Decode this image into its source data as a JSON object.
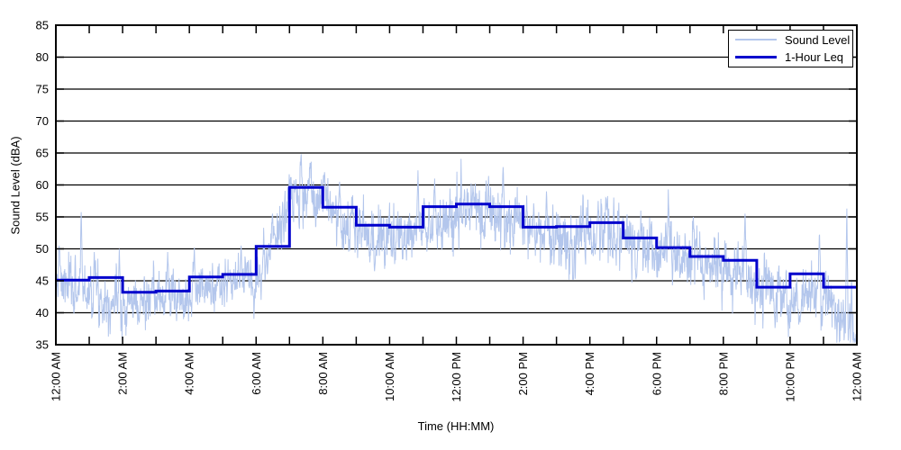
{
  "figure": {
    "xlabel": "Time (HH:MM)",
    "ylabel": "Sound Level (dBA)"
  },
  "legend": {
    "position": "top-right",
    "border_color": "#000000",
    "entries": [
      {
        "label": "Sound Level",
        "color": "#b3c6ec",
        "line_width": 1.5
      },
      {
        "label": "1-Hour Leq",
        "color": "#0000cc",
        "line_width": 3.5
      }
    ]
  },
  "chart_data": {
    "type": "line",
    "title": "",
    "xlabel": "Time (HH:MM)",
    "ylabel": "Sound Level (dBA)",
    "x_unit": "hours",
    "xlim": [
      0,
      24
    ],
    "ylim": [
      35,
      85
    ],
    "y_ticks": [
      35,
      40,
      45,
      50,
      55,
      60,
      65,
      70,
      75,
      80,
      85
    ],
    "x_tick_every_hours": 1,
    "x_label_every_hours": 2,
    "x_tick_labels": [
      "12:00 AM",
      "2:00 AM",
      "4:00 AM",
      "6:00 AM",
      "8:00 AM",
      "10:00 AM",
      "12:00 PM",
      "2:00 PM",
      "4:00 PM",
      "6:00 PM",
      "8:00 PM",
      "10:00 PM",
      "12:00 AM"
    ],
    "grid": {
      "horizontal": true,
      "vertical": false,
      "style": "solid",
      "color": "#000000"
    },
    "legend_position": "top-right",
    "series": [
      {
        "name": "Sound Level",
        "type": "noisy-trace",
        "color": "#b3c6ec",
        "stroke_width": 1,
        "samples_per_hour": 120,
        "seed": 7,
        "hourly_envelope_dba": [
          44.5,
          43.5,
          41.5,
          42.0,
          43.0,
          44.5,
          45.5,
          57.0,
          58.0,
          52.5,
          52.0,
          53.0,
          55.5,
          55.5,
          54.5,
          52.0,
          52.5,
          52.0,
          49.5,
          48.0,
          47.0,
          45.0,
          42.5,
          43.0,
          37.0
        ],
        "hourly_sd_dba": [
          2.2,
          2.2,
          2.0,
          2.0,
          1.8,
          1.6,
          2.0,
          2.2,
          2.2,
          2.0,
          2.2,
          2.4,
          2.2,
          2.4,
          2.2,
          2.5,
          2.5,
          2.2,
          2.4,
          2.2,
          2.4,
          2.2,
          2.2,
          2.4
        ],
        "spikes_hour_value": [
          [
            0.1,
            50.5
          ],
          [
            0.76,
            56.2
          ],
          [
            1.15,
            49.5
          ],
          [
            1.9,
            50.0
          ],
          [
            2.5,
            38.6
          ],
          [
            3.35,
            49.5
          ],
          [
            4.15,
            50.2
          ],
          [
            5.55,
            50.5
          ],
          [
            6.55,
            52.5
          ],
          [
            7.35,
            64.8
          ],
          [
            7.62,
            63.5
          ],
          [
            8.05,
            62.0
          ],
          [
            8.5,
            60.5
          ],
          [
            9.55,
            46.5
          ],
          [
            10.85,
            62.3
          ],
          [
            11.35,
            61.0
          ],
          [
            12.5,
            60.0
          ],
          [
            13.4,
            62.8
          ],
          [
            14.7,
            59.0
          ],
          [
            15.5,
            44.0
          ],
          [
            16.25,
            57.5
          ],
          [
            17.4,
            45.5
          ],
          [
            18.35,
            59.3
          ],
          [
            19.1,
            55.0
          ],
          [
            20.65,
            55.5
          ],
          [
            21.55,
            37.6
          ],
          [
            22.3,
            38.5
          ],
          [
            22.88,
            53.0
          ],
          [
            23.7,
            56.3
          ],
          [
            23.95,
            35.4
          ]
        ],
        "clamp_dba": [
          35.3,
          65.5
        ]
      },
      {
        "name": "1-Hour Leq",
        "type": "step",
        "color": "#0000cc",
        "stroke_width": 3,
        "hour_start": [
          0,
          1,
          2,
          3,
          4,
          5,
          6,
          7,
          8,
          9,
          10,
          11,
          12,
          13,
          14,
          15,
          16,
          17,
          18,
          19,
          20,
          21,
          22,
          23
        ],
        "values_dba": [
          45.1,
          45.5,
          43.2,
          43.4,
          45.6,
          46.0,
          50.4,
          59.6,
          56.5,
          53.7,
          53.4,
          56.6,
          57.0,
          56.6,
          53.4,
          53.5,
          54.1,
          51.7,
          50.2,
          48.8,
          48.2,
          44.0,
          46.1,
          44.0
        ]
      }
    ]
  }
}
